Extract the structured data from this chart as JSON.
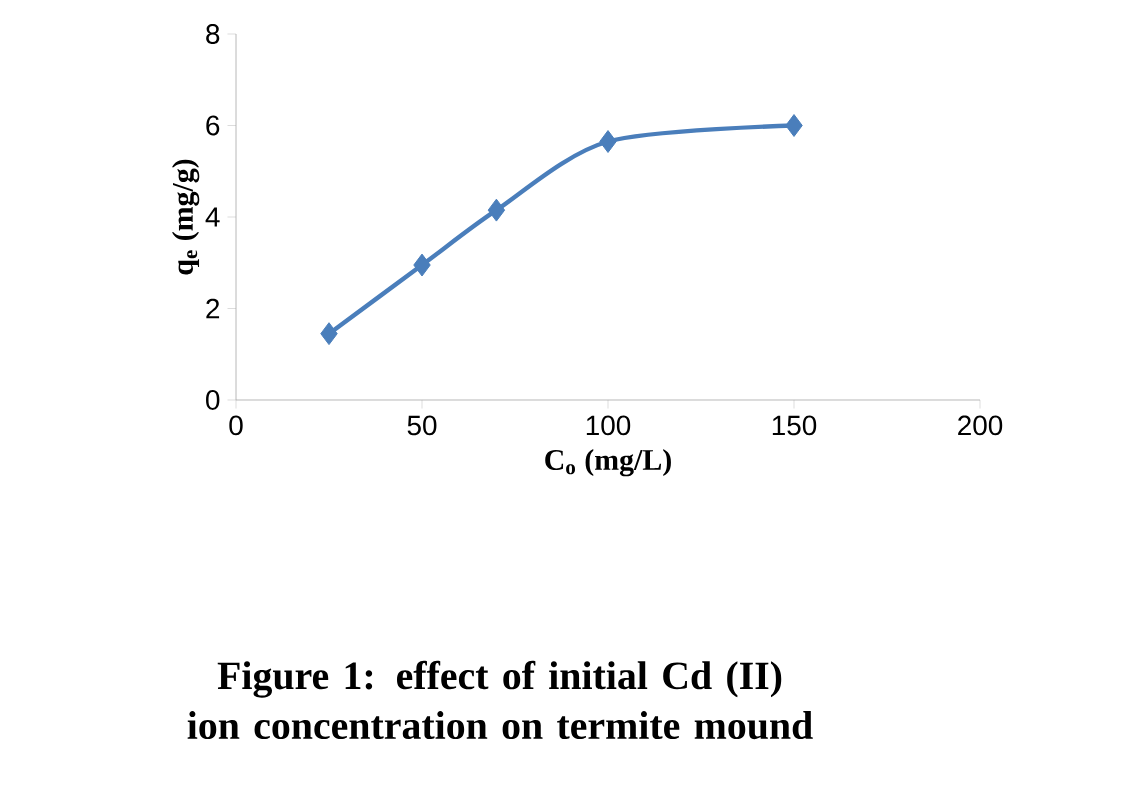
{
  "chart_data": {
    "type": "line",
    "xlabel": "C$_{o}$ (mg/L)",
    "ylabel": "q$_{e}$ (mg/g)",
    "annotations": [
      "Figure 1: effect of initial Cd (II) ion concentration on termite mound"
    ],
    "x": [
      25,
      50,
      70,
      100,
      150
    ],
    "series": [
      {
        "color": "#4a7ebb",
        "values": [
          1.45,
          2.95,
          4.15,
          5.65,
          6.0
        ]
      }
    ],
    "xlim": [
      0,
      200
    ],
    "xticks": [
      0,
      50,
      100,
      150,
      200
    ],
    "ylim": [
      0,
      8
    ],
    "yticks": [
      0,
      2,
      4,
      6,
      8
    ],
    "grid": false,
    "marker": "diamond",
    "line_style": "solid"
  }
}
